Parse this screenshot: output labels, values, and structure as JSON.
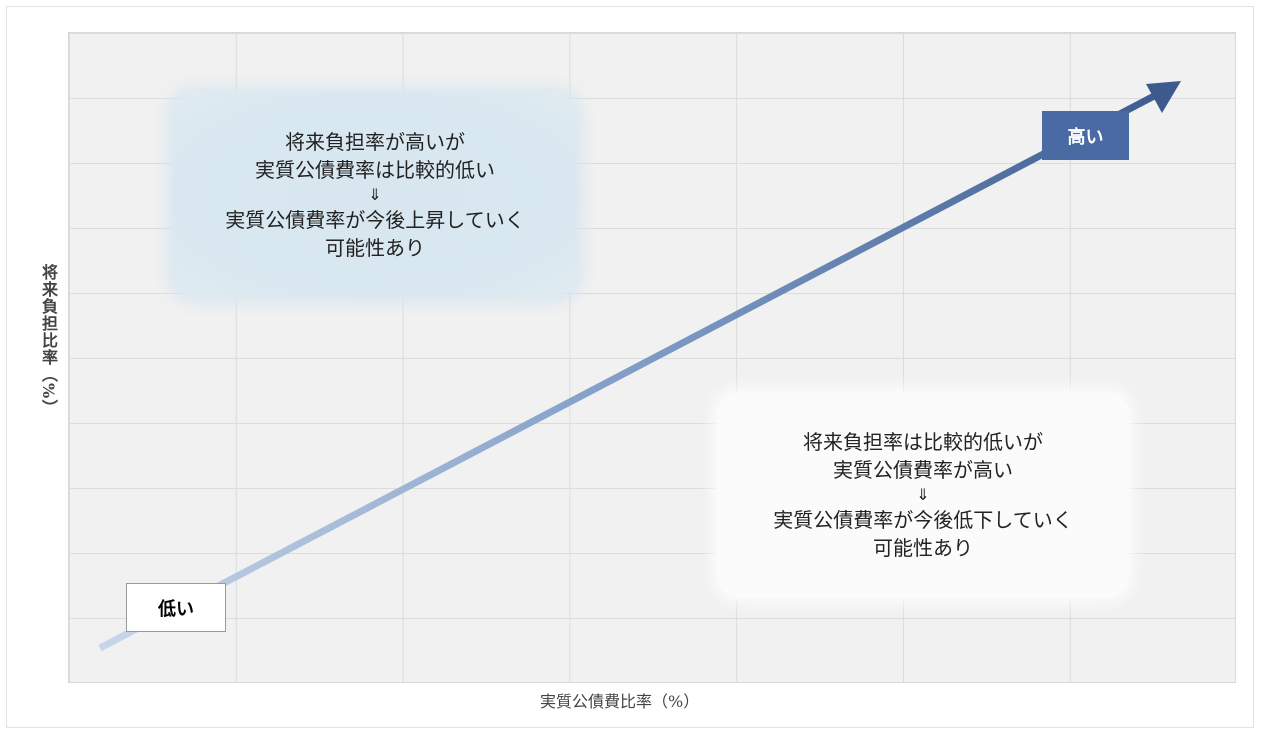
{
  "axes": {
    "x_title": "実質公債費比率（%）",
    "y_title": "将来負担比率（%）"
  },
  "arrow": {
    "high_label": "高い",
    "low_label": "低い",
    "start_color": "#c8d6e8",
    "end_color": "#3c5a8e"
  },
  "notes": {
    "upper": {
      "line1": "将来負担率が高いが",
      "line2": "実質公債費率は比較的低い",
      "line3": "⇓",
      "line4": "実質公債費率が今後上昇していく",
      "line5": "可能性あり"
    },
    "lower": {
      "line1": "将来負担率は比較的低いが",
      "line2": "実質公債費率が高い",
      "line3": "⇓",
      "line4": "実質公債費率が今後低下していく",
      "line5": "可能性あり"
    }
  },
  "colors": {
    "grid_background": "#f1f1f1",
    "high_badge": "#4a6aa4",
    "upper_note": "#d9e8f0"
  }
}
